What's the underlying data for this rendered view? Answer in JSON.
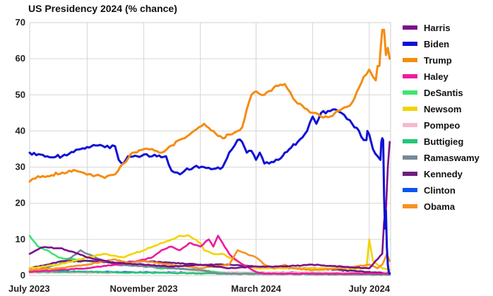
{
  "chart_data": {
    "type": "line",
    "title": "US Presidency 2024 (% chance)",
    "xlabel": "",
    "ylabel": "",
    "x_ticks": [
      "July 2023",
      "November 2023",
      "March 2024",
      "July 2024"
    ],
    "xlim": [
      "2023-07-01",
      "2024-07-24"
    ],
    "ylim": [
      0,
      70
    ],
    "y_ticks": [
      0,
      10,
      20,
      30,
      40,
      50,
      60,
      70
    ],
    "grid": true,
    "legend_position": "right",
    "series": [
      {
        "name": "Harris",
        "color": "#7b0f8c",
        "points": [
          [
            "2023-07-01",
            6
          ],
          [
            "2023-07-15",
            7.8
          ],
          [
            "2023-08-05",
            7.5
          ],
          [
            "2023-09-01",
            5
          ],
          [
            "2023-10-01",
            3.5
          ],
          [
            "2023-11-01",
            3
          ],
          [
            "2023-12-01",
            2.5
          ],
          [
            "2024-01-01",
            3
          ],
          [
            "2024-02-01",
            2
          ],
          [
            "2024-03-01",
            2.5
          ],
          [
            "2024-04-01",
            2.5
          ],
          [
            "2024-05-01",
            3
          ],
          [
            "2024-06-01",
            2.5
          ],
          [
            "2024-07-01",
            2
          ],
          [
            "2024-07-15",
            6
          ],
          [
            "2024-07-17",
            15
          ],
          [
            "2024-07-19",
            18
          ],
          [
            "2024-07-21",
            30
          ],
          [
            "2024-07-23",
            37
          ]
        ]
      },
      {
        "name": "Biden",
        "color": "#1010d8",
        "points": [
          [
            "2023-07-01",
            34
          ],
          [
            "2023-07-20",
            33
          ],
          [
            "2023-08-05",
            33
          ],
          [
            "2023-08-25",
            35
          ],
          [
            "2023-09-10",
            36
          ],
          [
            "2023-09-20",
            35.5
          ],
          [
            "2023-10-01",
            35.8
          ],
          [
            "2023-10-05",
            32
          ],
          [
            "2023-10-10",
            31
          ],
          [
            "2023-10-15",
            33
          ],
          [
            "2023-10-25",
            33
          ],
          [
            "2023-11-01",
            33.5
          ],
          [
            "2023-11-10",
            33
          ],
          [
            "2023-11-25",
            33
          ],
          [
            "2023-12-01",
            29
          ],
          [
            "2023-12-10",
            28
          ],
          [
            "2023-12-15",
            29
          ],
          [
            "2023-12-25",
            30
          ],
          [
            "2024-01-05",
            30
          ],
          [
            "2024-01-15",
            29.5
          ],
          [
            "2024-01-25",
            30
          ],
          [
            "2024-02-01",
            34
          ],
          [
            "2024-02-10",
            37.5
          ],
          [
            "2024-02-15",
            37
          ],
          [
            "2024-02-20",
            34
          ],
          [
            "2024-02-25",
            34.5
          ],
          [
            "2024-03-01",
            32
          ],
          [
            "2024-03-05",
            34
          ],
          [
            "2024-03-10",
            31
          ],
          [
            "2024-03-15",
            31
          ],
          [
            "2024-03-25",
            32
          ],
          [
            "2024-04-01",
            34
          ],
          [
            "2024-04-15",
            37
          ],
          [
            "2024-04-25",
            40
          ],
          [
            "2024-05-01",
            44
          ],
          [
            "2024-05-05",
            42
          ],
          [
            "2024-05-10",
            45
          ],
          [
            "2024-05-20",
            45.5
          ],
          [
            "2024-05-25",
            46
          ],
          [
            "2024-06-01",
            45
          ],
          [
            "2024-06-10",
            43
          ],
          [
            "2024-06-15",
            41
          ],
          [
            "2024-06-20",
            40
          ],
          [
            "2024-06-25",
            37.5
          ],
          [
            "2024-06-28",
            37.5
          ],
          [
            "2024-06-29",
            40
          ],
          [
            "2024-07-01",
            39
          ],
          [
            "2024-07-05",
            35
          ],
          [
            "2024-07-10",
            33
          ],
          [
            "2024-07-13",
            32
          ],
          [
            "2024-07-14",
            37
          ],
          [
            "2024-07-15",
            38
          ],
          [
            "2024-07-16",
            37.5
          ],
          [
            "2024-07-17",
            22
          ],
          [
            "2024-07-18",
            13
          ],
          [
            "2024-07-19",
            18
          ],
          [
            "2024-07-20",
            8
          ],
          [
            "2024-07-21",
            3
          ],
          [
            "2024-07-22",
            1
          ],
          [
            "2024-07-23",
            0.5
          ]
        ]
      },
      {
        "name": "Trump",
        "color": "#f58c12",
        "points": [
          [
            "2023-07-01",
            26
          ],
          [
            "2023-07-10",
            27.5
          ],
          [
            "2023-07-20",
            27.5
          ],
          [
            "2023-08-05",
            28.5
          ],
          [
            "2023-08-20",
            29
          ],
          [
            "2023-09-05",
            28
          ],
          [
            "2023-09-20",
            27
          ],
          [
            "2023-10-01",
            28
          ],
          [
            "2023-10-10",
            31
          ],
          [
            "2023-10-20",
            34
          ],
          [
            "2023-11-01",
            35
          ],
          [
            "2023-11-10",
            35
          ],
          [
            "2023-11-20",
            34
          ],
          [
            "2023-12-01",
            36
          ],
          [
            "2023-12-15",
            38
          ],
          [
            "2023-12-25",
            40
          ],
          [
            "2024-01-05",
            42
          ],
          [
            "2024-01-15",
            40
          ],
          [
            "2024-01-25",
            38
          ],
          [
            "2024-02-01",
            39
          ],
          [
            "2024-02-10",
            40
          ],
          [
            "2024-02-15",
            41
          ],
          [
            "2024-02-20",
            46
          ],
          [
            "2024-02-25",
            50
          ],
          [
            "2024-03-01",
            51
          ],
          [
            "2024-03-10",
            50
          ],
          [
            "2024-03-20",
            52
          ],
          [
            "2024-04-01",
            53
          ],
          [
            "2024-04-10",
            49
          ],
          [
            "2024-04-20",
            47
          ],
          [
            "2024-04-25",
            46
          ],
          [
            "2024-05-01",
            45
          ],
          [
            "2024-05-10",
            44
          ],
          [
            "2024-05-20",
            44
          ],
          [
            "2024-05-25",
            45
          ],
          [
            "2024-06-01",
            46
          ],
          [
            "2024-06-10",
            47
          ],
          [
            "2024-06-15",
            49
          ],
          [
            "2024-06-20",
            52
          ],
          [
            "2024-06-25",
            55
          ],
          [
            "2024-07-01",
            57
          ],
          [
            "2024-07-05",
            55
          ],
          [
            "2024-07-08",
            54
          ],
          [
            "2024-07-10",
            58
          ],
          [
            "2024-07-12",
            58
          ],
          [
            "2024-07-13",
            62
          ],
          [
            "2024-07-15",
            68
          ],
          [
            "2024-07-17",
            68
          ],
          [
            "2024-07-19",
            61
          ],
          [
            "2024-07-21",
            63
          ],
          [
            "2024-07-23",
            60
          ]
        ]
      },
      {
        "name": "Haley",
        "color": "#ee1b9e",
        "points": [
          [
            "2023-07-01",
            1
          ],
          [
            "2023-08-01",
            1.5
          ],
          [
            "2023-09-01",
            2
          ],
          [
            "2023-10-01",
            3
          ],
          [
            "2023-10-25",
            4
          ],
          [
            "2023-11-10",
            5
          ],
          [
            "2023-11-20",
            7
          ],
          [
            "2023-12-01",
            8
          ],
          [
            "2023-12-10",
            7
          ],
          [
            "2023-12-20",
            9
          ],
          [
            "2024-01-01",
            8
          ],
          [
            "2024-01-10",
            10
          ],
          [
            "2024-01-15",
            8
          ],
          [
            "2024-01-20",
            11
          ],
          [
            "2024-01-25",
            9
          ],
          [
            "2024-02-01",
            6
          ],
          [
            "2024-02-10",
            4
          ],
          [
            "2024-02-20",
            2.5
          ],
          [
            "2024-03-01",
            1
          ],
          [
            "2024-03-10",
            0.5
          ],
          [
            "2024-07-23",
            0.5
          ]
        ]
      },
      {
        "name": "DeSantis",
        "color": "#3ee56e",
        "points": [
          [
            "2023-07-01",
            11
          ],
          [
            "2023-07-10",
            8
          ],
          [
            "2023-07-20",
            7
          ],
          [
            "2023-08-01",
            5
          ],
          [
            "2023-09-01",
            4
          ],
          [
            "2023-10-01",
            3.5
          ],
          [
            "2023-11-01",
            3
          ],
          [
            "2023-11-15",
            2
          ],
          [
            "2023-12-01",
            2
          ],
          [
            "2024-01-01",
            1.5
          ],
          [
            "2024-02-01",
            0.5
          ],
          [
            "2024-07-23",
            0.2
          ]
        ]
      },
      {
        "name": "Newsom",
        "color": "#f2d400",
        "points": [
          [
            "2023-07-01",
            2
          ],
          [
            "2023-08-01",
            3
          ],
          [
            "2023-09-01",
            5
          ],
          [
            "2023-09-20",
            6
          ],
          [
            "2023-10-10",
            5
          ],
          [
            "2023-10-20",
            6
          ],
          [
            "2023-11-01",
            7
          ],
          [
            "2023-11-20",
            9
          ],
          [
            "2023-12-01",
            10
          ],
          [
            "2023-12-10",
            11
          ],
          [
            "2023-12-20",
            11
          ],
          [
            "2024-01-01",
            9
          ],
          [
            "2024-01-05",
            7
          ],
          [
            "2024-01-15",
            6
          ],
          [
            "2024-01-25",
            6
          ],
          [
            "2024-02-01",
            5
          ],
          [
            "2024-02-10",
            4
          ],
          [
            "2024-02-20",
            2.5
          ],
          [
            "2024-03-01",
            2
          ],
          [
            "2024-04-01",
            2
          ],
          [
            "2024-05-01",
            2
          ],
          [
            "2024-06-01",
            2
          ],
          [
            "2024-06-28",
            2
          ],
          [
            "2024-07-01",
            10
          ],
          [
            "2024-07-05",
            4
          ],
          [
            "2024-07-15",
            2
          ],
          [
            "2024-07-23",
            1.5
          ]
        ]
      },
      {
        "name": "Pompeo",
        "color": "#f7b9cc",
        "points": [
          [
            "2023-07-01",
            0.8
          ],
          [
            "2024-07-23",
            0.8
          ]
        ]
      },
      {
        "name": "Buttigieg",
        "color": "#22c777",
        "points": [
          [
            "2023-07-01",
            1
          ],
          [
            "2023-09-01",
            1
          ],
          [
            "2023-11-01",
            0.8
          ],
          [
            "2024-02-01",
            0.5
          ],
          [
            "2024-07-23",
            0.5
          ]
        ]
      },
      {
        "name": "Ramaswamy",
        "color": "#778a98",
        "points": [
          [
            "2023-07-01",
            1
          ],
          [
            "2023-07-15",
            2
          ],
          [
            "2023-08-01",
            3
          ],
          [
            "2023-08-15",
            5
          ],
          [
            "2023-08-25",
            7
          ],
          [
            "2023-09-01",
            6
          ],
          [
            "2023-09-10",
            5
          ],
          [
            "2023-09-20",
            4
          ],
          [
            "2023-10-01",
            3
          ],
          [
            "2023-11-01",
            2.5
          ],
          [
            "2023-12-01",
            2
          ],
          [
            "2024-01-01",
            1.5
          ],
          [
            "2024-01-20",
            0.5
          ],
          [
            "2024-07-23",
            0.3
          ]
        ]
      },
      {
        "name": "Kennedy",
        "color": "#6a1f7d",
        "points": [
          [
            "2023-07-01",
            2
          ],
          [
            "2023-07-20",
            3
          ],
          [
            "2023-08-05",
            4
          ],
          [
            "2023-08-20",
            4
          ],
          [
            "2023-09-10",
            4
          ],
          [
            "2023-10-01",
            3.5
          ],
          [
            "2023-11-01",
            4
          ],
          [
            "2023-12-01",
            3.5
          ],
          [
            "2024-01-01",
            3
          ],
          [
            "2024-02-01",
            3
          ],
          [
            "2024-03-01",
            2.5
          ],
          [
            "2024-04-01",
            2
          ],
          [
            "2024-05-01",
            2
          ],
          [
            "2024-06-01",
            1.5
          ],
          [
            "2024-07-01",
            1
          ],
          [
            "2024-07-23",
            0.5
          ]
        ]
      },
      {
        "name": "Clinton",
        "color": "#0a55f0",
        "points": [
          [
            "2023-07-01",
            1.2
          ],
          [
            "2023-09-01",
            1
          ],
          [
            "2024-01-01",
            0.8
          ],
          [
            "2024-07-23",
            0.8
          ]
        ]
      },
      {
        "name": "Obama",
        "color": "#f79222",
        "points": [
          [
            "2023-07-01",
            1.5
          ],
          [
            "2023-08-01",
            2
          ],
          [
            "2023-09-01",
            3
          ],
          [
            "2023-10-01",
            4.5
          ],
          [
            "2023-10-15",
            3.5
          ],
          [
            "2023-11-01",
            4
          ],
          [
            "2023-12-01",
            3
          ],
          [
            "2024-01-01",
            2
          ],
          [
            "2024-02-01",
            3
          ],
          [
            "2024-02-10",
            7
          ],
          [
            "2024-02-20",
            6
          ],
          [
            "2024-03-01",
            5
          ],
          [
            "2024-03-10",
            3
          ],
          [
            "2024-03-20",
            2
          ],
          [
            "2024-04-01",
            3
          ],
          [
            "2024-04-10",
            2
          ],
          [
            "2024-05-01",
            1.5
          ],
          [
            "2024-06-01",
            2
          ],
          [
            "2024-07-01",
            3
          ],
          [
            "2024-07-10",
            2
          ],
          [
            "2024-07-15",
            3
          ],
          [
            "2024-07-20",
            6
          ],
          [
            "2024-07-23",
            4
          ]
        ]
      }
    ]
  }
}
